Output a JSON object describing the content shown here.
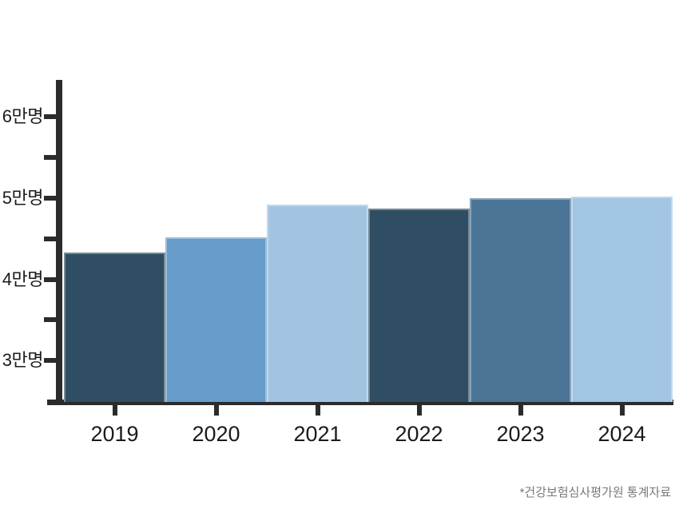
{
  "chart_data": {
    "type": "bar",
    "title": "",
    "unit": "만명",
    "categories": [
      "2019",
      "2020",
      "2021",
      "2022",
      "2023",
      "2024"
    ],
    "values": [
      4.33,
      4.52,
      4.92,
      4.87,
      5.0,
      5.02
    ],
    "bar_colors": [
      "#2F4E63",
      "#679CCB",
      "#A3C4E1",
      "#2F4E63",
      "#4B7596",
      "#A2C5E3"
    ],
    "yticks": [
      {
        "v": 6,
        "label": "6만명"
      },
      {
        "v": 5.5,
        "label": ""
      },
      {
        "v": 5,
        "label": "5만명"
      },
      {
        "v": 4.5,
        "label": ""
      },
      {
        "v": 4,
        "label": "4만명"
      },
      {
        "v": 3.5,
        "label": ""
      },
      {
        "v": 3,
        "label": "3만명"
      }
    ],
    "ylim": [
      2.49,
      6.46
    ],
    "grid": "off",
    "legend": "none",
    "axis_color": "#2B2B2B",
    "footnote": "*건강보험심사평가원 통계자료"
  }
}
